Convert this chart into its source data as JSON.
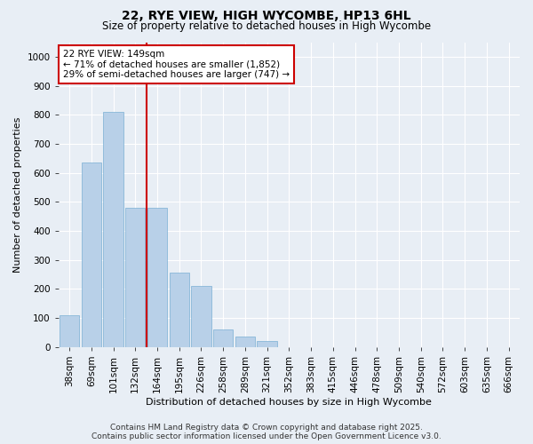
{
  "title": "22, RYE VIEW, HIGH WYCOMBE, HP13 6HL",
  "subtitle": "Size of property relative to detached houses in High Wycombe",
  "xlabel": "Distribution of detached houses by size in High Wycombe",
  "ylabel": "Number of detached properties",
  "categories": [
    "38sqm",
    "69sqm",
    "101sqm",
    "132sqm",
    "164sqm",
    "195sqm",
    "226sqm",
    "258sqm",
    "289sqm",
    "321sqm",
    "352sqm",
    "383sqm",
    "415sqm",
    "446sqm",
    "478sqm",
    "509sqm",
    "540sqm",
    "572sqm",
    "603sqm",
    "635sqm",
    "666sqm"
  ],
  "values": [
    110,
    635,
    810,
    480,
    480,
    255,
    210,
    60,
    35,
    20,
    0,
    0,
    0,
    0,
    0,
    0,
    0,
    0,
    0,
    0,
    0
  ],
  "bar_color": "#b8d0e8",
  "bar_edge_color": "#7aafd4",
  "vline_x": 3.5,
  "vline_color": "#cc0000",
  "annotation_text": "22 RYE VIEW: 149sqm\n← 71% of detached houses are smaller (1,852)\n29% of semi-detached houses are larger (747) →",
  "annotation_box_color": "#ffffff",
  "annotation_box_edge": "#cc0000",
  "footer_text": "Contains HM Land Registry data © Crown copyright and database right 2025.\nContains public sector information licensed under the Open Government Licence v3.0.",
  "ylim": [
    0,
    1050
  ],
  "yticks": [
    0,
    100,
    200,
    300,
    400,
    500,
    600,
    700,
    800,
    900,
    1000
  ],
  "background_color": "#e8eef5",
  "plot_background": "#e8eef5",
  "grid_color": "#ffffff",
  "title_fontsize": 10,
  "subtitle_fontsize": 8.5,
  "axis_label_fontsize": 8,
  "tick_fontsize": 7.5,
  "footer_fontsize": 6.5,
  "annotation_fontsize": 7.5
}
